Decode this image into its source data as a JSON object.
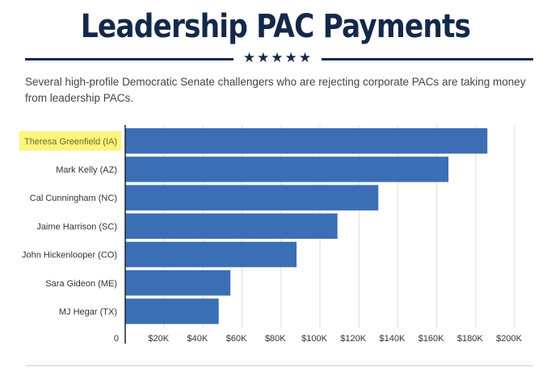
{
  "header": {
    "title": "Leadership PAC Payments",
    "stars": "★★★★★",
    "subtitle": "Several high-profile Democratic Senate challengers who are rejecting corporate PACs are taking money from leadership PACs."
  },
  "colors": {
    "bar": "#3c6eb5",
    "title": "#14284b",
    "highlight": "#fbf57d",
    "grid": "#dddddd"
  },
  "chart_data": {
    "type": "bar",
    "orientation": "horizontal",
    "title": "",
    "xlabel": "",
    "ylabel": "",
    "categories": [
      "Theresa Greenfield (IA)",
      "Mark Kelly (AZ)",
      "Cal Cunningham (NC)",
      "Jaime Harrison (SC)",
      "John Hickenlooper (CO)",
      "Sara Gideon (ME)",
      "MJ Hegar (TX)"
    ],
    "values": [
      186000,
      166000,
      130000,
      109000,
      88000,
      54000,
      48000
    ],
    "highlighted": "Theresa Greenfield (IA)",
    "xlim": [
      0,
      200000
    ],
    "xticks": [
      0,
      20000,
      40000,
      60000,
      80000,
      100000,
      120000,
      140000,
      160000,
      180000,
      200000
    ],
    "xtick_labels": [
      "0",
      "$20K",
      "$40K",
      "$60K",
      "$80K",
      "$100K",
      "$120K",
      "$140K",
      "$160K",
      "$180K",
      "$200K"
    ],
    "grid": true,
    "legend": "none"
  }
}
